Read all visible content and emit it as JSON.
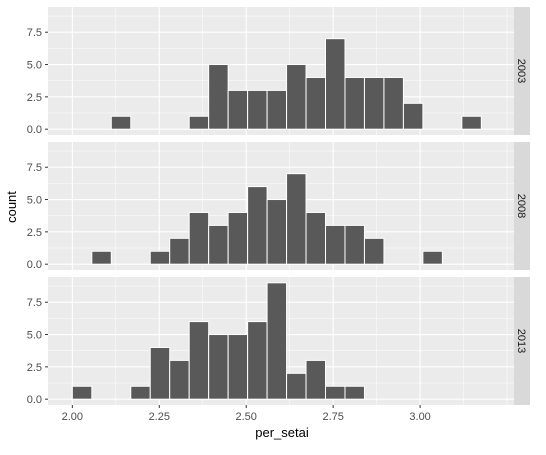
{
  "chart_data": {
    "type": "bar",
    "xlabel": "per_setai",
    "ylabel": "count",
    "xlim": [
      1.93,
      3.27
    ],
    "ylim": [
      -0.45,
      9.45
    ],
    "x_ticks": [
      2.0,
      2.25,
      2.5,
      2.75,
      3.0
    ],
    "x_tick_labels": [
      "2.00",
      "2.25",
      "2.50",
      "2.75",
      "3.00"
    ],
    "y_ticks": [
      0,
      2.5,
      5,
      7.5
    ],
    "y_tick_labels": [
      "0.0",
      "2.5",
      "5.0",
      "7.5"
    ],
    "grid": true,
    "bin_width": 0.056,
    "panels": [
      {
        "facet": "2003",
        "bins": [
          {
            "x": 2.14,
            "count": 1
          },
          {
            "x": 2.364,
            "count": 1
          },
          {
            "x": 2.42,
            "count": 5
          },
          {
            "x": 2.476,
            "count": 3
          },
          {
            "x": 2.532,
            "count": 3
          },
          {
            "x": 2.588,
            "count": 3
          },
          {
            "x": 2.644,
            "count": 5
          },
          {
            "x": 2.7,
            "count": 4
          },
          {
            "x": 2.756,
            "count": 7
          },
          {
            "x": 2.812,
            "count": 4
          },
          {
            "x": 2.868,
            "count": 4
          },
          {
            "x": 2.924,
            "count": 4
          },
          {
            "x": 2.98,
            "count": 2
          },
          {
            "x": 3.148,
            "count": 1
          }
        ]
      },
      {
        "facet": "2008",
        "bins": [
          {
            "x": 2.084,
            "count": 1
          },
          {
            "x": 2.252,
            "count": 1
          },
          {
            "x": 2.308,
            "count": 2
          },
          {
            "x": 2.364,
            "count": 4
          },
          {
            "x": 2.42,
            "count": 3
          },
          {
            "x": 2.476,
            "count": 4
          },
          {
            "x": 2.532,
            "count": 6
          },
          {
            "x": 2.588,
            "count": 5
          },
          {
            "x": 2.644,
            "count": 7
          },
          {
            "x": 2.7,
            "count": 4
          },
          {
            "x": 2.756,
            "count": 3
          },
          {
            "x": 2.812,
            "count": 3
          },
          {
            "x": 2.868,
            "count": 2
          },
          {
            "x": 3.036,
            "count": 1
          }
        ]
      },
      {
        "facet": "2013",
        "bins": [
          {
            "x": 2.028,
            "count": 1
          },
          {
            "x": 2.196,
            "count": 1
          },
          {
            "x": 2.252,
            "count": 4
          },
          {
            "x": 2.308,
            "count": 3
          },
          {
            "x": 2.364,
            "count": 6
          },
          {
            "x": 2.42,
            "count": 5
          },
          {
            "x": 2.476,
            "count": 5
          },
          {
            "x": 2.532,
            "count": 6
          },
          {
            "x": 2.588,
            "count": 9
          },
          {
            "x": 2.644,
            "count": 2
          },
          {
            "x": 2.7,
            "count": 3
          },
          {
            "x": 2.756,
            "count": 1
          },
          {
            "x": 2.812,
            "count": 1
          }
        ]
      }
    ]
  }
}
